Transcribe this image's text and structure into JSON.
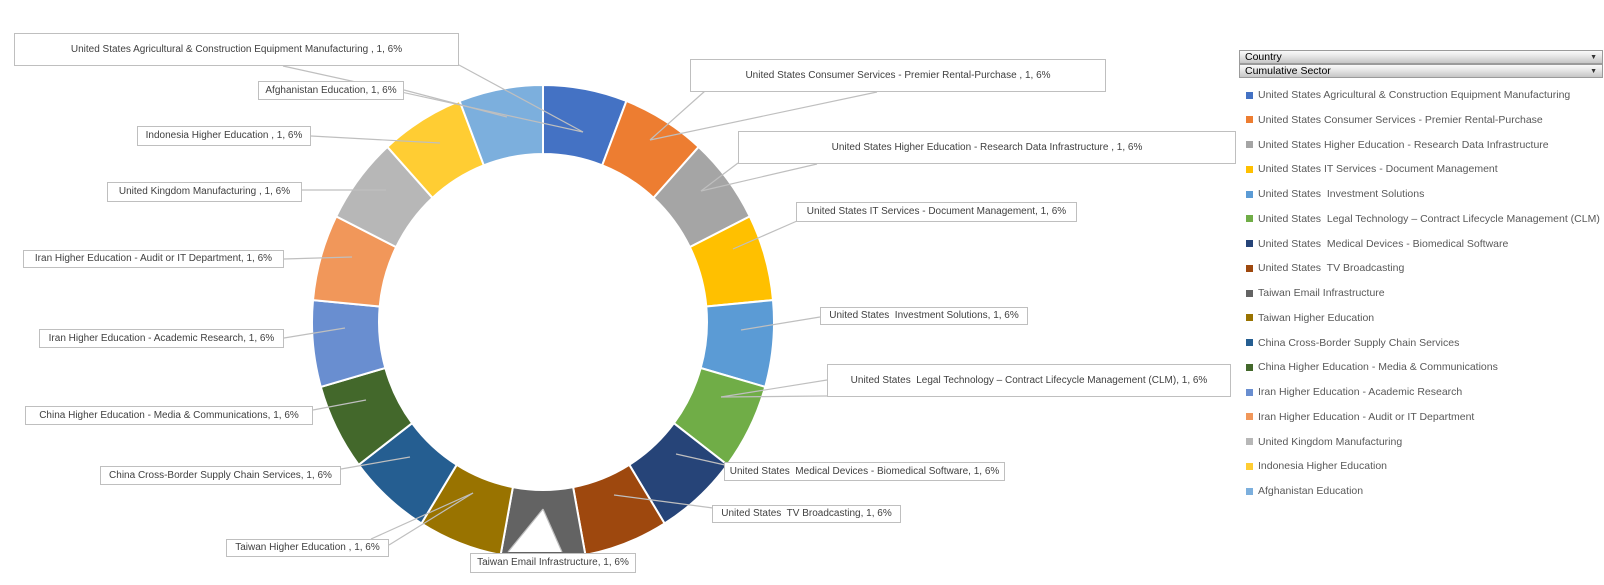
{
  "chart_data": {
    "type": "pie",
    "subtype": "donut",
    "title": "",
    "legend_position": "right",
    "hole_ratio": 0.71,
    "data_label_format": "category, value, percent",
    "categories": [
      "United States Agricultural & Construction Equipment Manufacturing",
      "United States Consumer Services - Premier Rental-Purchase",
      "United States Higher Education - Research Data Infrastructure",
      "United States IT Services - Document Management",
      "United States  Investment Solutions",
      "United States  Legal Technology – Contract Lifecycle Management (CLM)",
      "United States  Medical Devices - Biomedical Software",
      "United States  TV Broadcasting",
      "Taiwan Email Infrastructure",
      "Taiwan Higher Education",
      "China Cross-Border Supply Chain Services",
      "China Higher Education - Media & Communications",
      "Iran Higher Education - Academic Research",
      "Iran Higher Education - Audit or IT Department",
      "United Kingdom Manufacturing",
      "Indonesia Higher Education",
      "Afghanistan Education"
    ],
    "values": [
      1,
      1,
      1,
      1,
      1,
      1,
      1,
      1,
      1,
      1,
      1,
      1,
      1,
      1,
      1,
      1,
      1
    ],
    "percent_labels": [
      "6%",
      "6%",
      "6%",
      "6%",
      "6%",
      "6%",
      "6%",
      "6%",
      "6%",
      "6%",
      "6%",
      "6%",
      "6%",
      "6%",
      "6%",
      "6%",
      "6%"
    ],
    "colors": [
      "#4472C4",
      "#ED7D31",
      "#A5A5A5",
      "#FFC000",
      "#5B9BD5",
      "#70AD47",
      "#264478",
      "#9E480E",
      "#636363",
      "#997300",
      "#255E91",
      "#43682B",
      "#698ED0",
      "#F1975A",
      "#B7B7B7",
      "#FFCD33",
      "#7CAFDD"
    ],
    "callout_labels": [
      "United States Agricultural & Construction Equipment Manufacturing , 1, 6%",
      "United States Consumer Services - Premier Rental-Purchase , 1, 6%",
      "United States Higher Education - Research Data Infrastructure , 1, 6%",
      "United States IT Services - Document Management, 1, 6%",
      "United States  Investment Solutions, 1, 6%",
      "United States  Legal Technology – Contract Lifecycle Management (CLM), 1, 6%",
      "United States  Medical Devices - Biomedical Software, 1, 6%",
      "United States  TV Broadcasting, 1, 6%",
      "Taiwan Email Infrastructure, 1, 6%",
      "Taiwan Higher Education , 1, 6%",
      "China Cross-Border Supply Chain Services, 1, 6%",
      "China Higher Education - Media & Communications, 1, 6%",
      "Iran Higher Education - Academic Research, 1, 6%",
      "Iran Higher Education - Audit or IT Department, 1, 6%",
      "United Kingdom Manufacturing , 1, 6%",
      "Indonesia Higher Education , 1, 6%",
      "Afghanistan Education, 1, 6%"
    ]
  },
  "field_buttons": {
    "country": {
      "label": "Country",
      "arrow": "▼"
    },
    "cumulative_sector": {
      "label": "Cumulative Sector",
      "arrow": "▼"
    }
  },
  "legend": {
    "items": [
      "United States Agricultural & Construction Equipment Manufacturing",
      "United States Consumer Services - Premier Rental-Purchase",
      "United States Higher Education - Research Data Infrastructure",
      "United States IT Services - Document Management",
      "United States  Investment Solutions",
      "United States  Legal Technology – Contract Lifecycle Management (CLM)",
      "United States  Medical Devices - Biomedical Software",
      "United States  TV Broadcasting",
      "Taiwan Email Infrastructure",
      "Taiwan Higher Education",
      "China Cross-Border Supply Chain Services",
      "China Higher Education - Media & Communications",
      "Iran Higher Education - Academic Research",
      "Iran Higher Education - Audit or IT Department",
      "United Kingdom Manufacturing",
      "Indonesia Higher Education",
      "Afghanistan Education"
    ]
  }
}
